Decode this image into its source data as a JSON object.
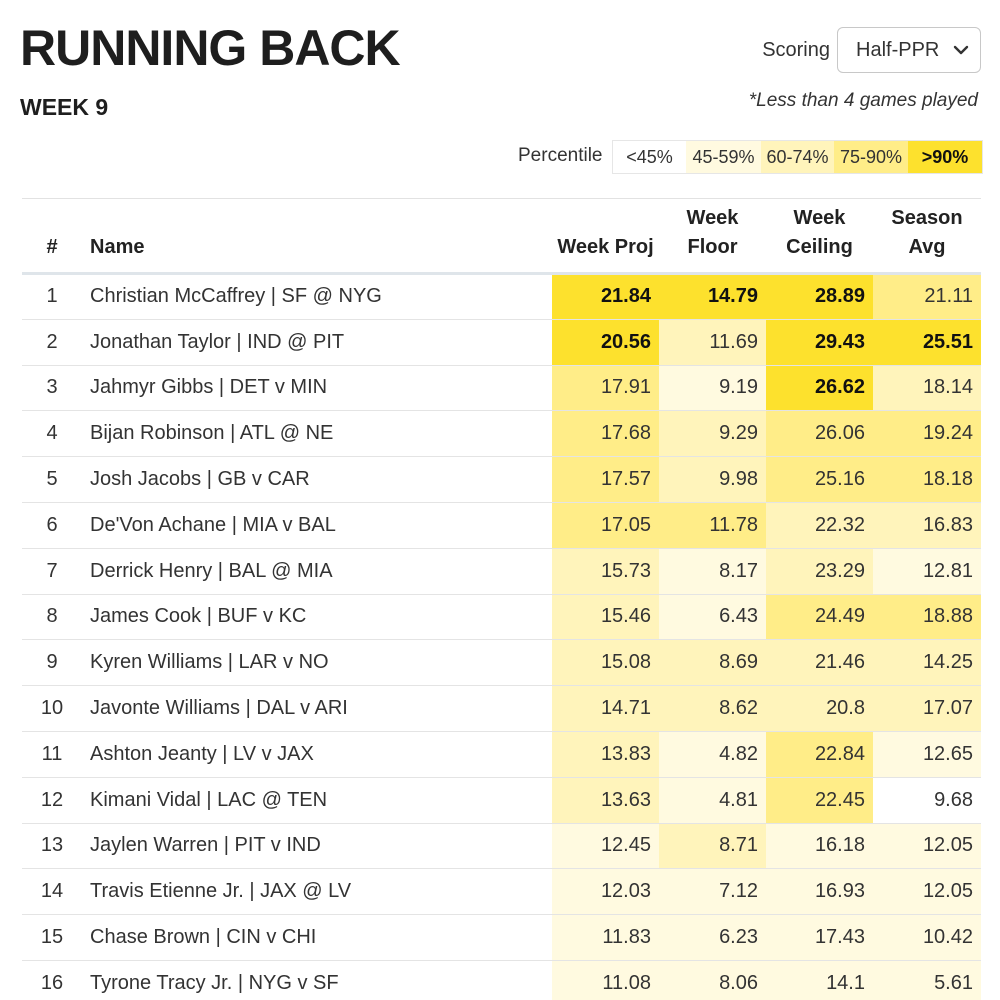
{
  "title": "RUNNING BACK",
  "week_label": "WEEK 9",
  "scoring": {
    "label": "Scoring",
    "selected": "Half-PPR"
  },
  "note": "*Less than 4 games played",
  "percentile": {
    "label": "Percentile",
    "bands": [
      {
        "key": "b0",
        "label": "<45%",
        "color": "#ffffff"
      },
      {
        "key": "b45",
        "label": "45-59%",
        "color": "#fffae0"
      },
      {
        "key": "b60",
        "label": "60-74%",
        "color": "#fff4bb"
      },
      {
        "key": "b75",
        "label": "75-90%",
        "color": "#ffed88"
      },
      {
        "key": "b90",
        "label": ">90%",
        "color": "#fde12d"
      }
    ]
  },
  "table": {
    "columns": {
      "rank": "#",
      "name": "Name",
      "proj": "Week Proj",
      "floor": "Week Floor",
      "ceiling": "Week Ceiling",
      "avg": "Season Avg"
    },
    "rows": [
      {
        "rank": "1",
        "name": "Christian McCaffrey | SF @ NYG",
        "proj": "21.84",
        "proj_band": "b90",
        "floor": "14.79",
        "floor_band": "b90",
        "ceiling": "28.89",
        "ceiling_band": "b90",
        "avg": "21.11",
        "avg_band": "b75"
      },
      {
        "rank": "2",
        "name": "Jonathan Taylor | IND @ PIT",
        "proj": "20.56",
        "proj_band": "b90",
        "floor": "11.69",
        "floor_band": "b60",
        "ceiling": "29.43",
        "ceiling_band": "b90",
        "avg": "25.51",
        "avg_band": "b90"
      },
      {
        "rank": "3",
        "name": "Jahmyr Gibbs | DET v MIN",
        "proj": "17.91",
        "proj_band": "b75",
        "floor": "9.19",
        "floor_band": "b45",
        "ceiling": "26.62",
        "ceiling_band": "b90",
        "avg": "18.14",
        "avg_band": "b60"
      },
      {
        "rank": "4",
        "name": "Bijan Robinson | ATL @ NE",
        "proj": "17.68",
        "proj_band": "b75",
        "floor": "9.29",
        "floor_band": "b60",
        "ceiling": "26.06",
        "ceiling_band": "b75",
        "avg": "19.24",
        "avg_band": "b75"
      },
      {
        "rank": "5",
        "name": "Josh Jacobs | GB v CAR",
        "proj": "17.57",
        "proj_band": "b75",
        "floor": "9.98",
        "floor_band": "b60",
        "ceiling": "25.16",
        "ceiling_band": "b75",
        "avg": "18.18",
        "avg_band": "b75"
      },
      {
        "rank": "6",
        "name": "De'Von Achane | MIA v BAL",
        "proj": "17.05",
        "proj_band": "b75",
        "floor": "11.78",
        "floor_band": "b75",
        "ceiling": "22.32",
        "ceiling_band": "b60",
        "avg": "16.83",
        "avg_band": "b60"
      },
      {
        "rank": "7",
        "name": "Derrick Henry | BAL @ MIA",
        "proj": "15.73",
        "proj_band": "b60",
        "floor": "8.17",
        "floor_band": "b45",
        "ceiling": "23.29",
        "ceiling_band": "b60",
        "avg": "12.81",
        "avg_band": "b45"
      },
      {
        "rank": "8",
        "name": "James Cook | BUF v KC",
        "proj": "15.46",
        "proj_band": "b60",
        "floor": "6.43",
        "floor_band": "b45",
        "ceiling": "24.49",
        "ceiling_band": "b75",
        "avg": "18.88",
        "avg_band": "b75"
      },
      {
        "rank": "9",
        "name": "Kyren Williams | LAR v NO",
        "proj": "15.08",
        "proj_band": "b60",
        "floor": "8.69",
        "floor_band": "b60",
        "ceiling": "21.46",
        "ceiling_band": "b60",
        "avg": "14.25",
        "avg_band": "b60"
      },
      {
        "rank": "10",
        "name": "Javonte Williams | DAL v ARI",
        "proj": "14.71",
        "proj_band": "b60",
        "floor": "8.62",
        "floor_band": "b60",
        "ceiling": "20.8",
        "ceiling_band": "b60",
        "avg": "17.07",
        "avg_band": "b60"
      },
      {
        "rank": "11",
        "name": "Ashton Jeanty | LV v JAX",
        "proj": "13.83",
        "proj_band": "b60",
        "floor": "4.82",
        "floor_band": "b45",
        "ceiling": "22.84",
        "ceiling_band": "b75",
        "avg": "12.65",
        "avg_band": "b45"
      },
      {
        "rank": "12",
        "name": "Kimani Vidal | LAC @ TEN",
        "proj": "13.63",
        "proj_band": "b60",
        "floor": "4.81",
        "floor_band": "b45",
        "ceiling": "22.45",
        "ceiling_band": "b75",
        "avg": "9.68",
        "avg_band": "b0"
      },
      {
        "rank": "13",
        "name": "Jaylen Warren | PIT v IND",
        "proj": "12.45",
        "proj_band": "b45",
        "floor": "8.71",
        "floor_band": "b60",
        "ceiling": "16.18",
        "ceiling_band": "b45",
        "avg": "12.05",
        "avg_band": "b45"
      },
      {
        "rank": "14",
        "name": "Travis Etienne Jr. | JAX @ LV",
        "proj": "12.03",
        "proj_band": "b45",
        "floor": "7.12",
        "floor_band": "b45",
        "ceiling": "16.93",
        "ceiling_band": "b45",
        "avg": "12.05",
        "avg_band": "b45"
      },
      {
        "rank": "15",
        "name": "Chase Brown | CIN v CHI",
        "proj": "11.83",
        "proj_band": "b45",
        "floor": "6.23",
        "floor_band": "b45",
        "ceiling": "17.43",
        "ceiling_band": "b45",
        "avg": "10.42",
        "avg_band": "b45"
      },
      {
        "rank": "16",
        "name": "Tyrone Tracy Jr. | NYG v SF",
        "proj": "11.08",
        "proj_band": "b45",
        "floor": "8.06",
        "floor_band": "b45",
        "ceiling": "14.1",
        "ceiling_band": "b45",
        "avg": "5.61",
        "avg_band": "b45"
      }
    ]
  }
}
